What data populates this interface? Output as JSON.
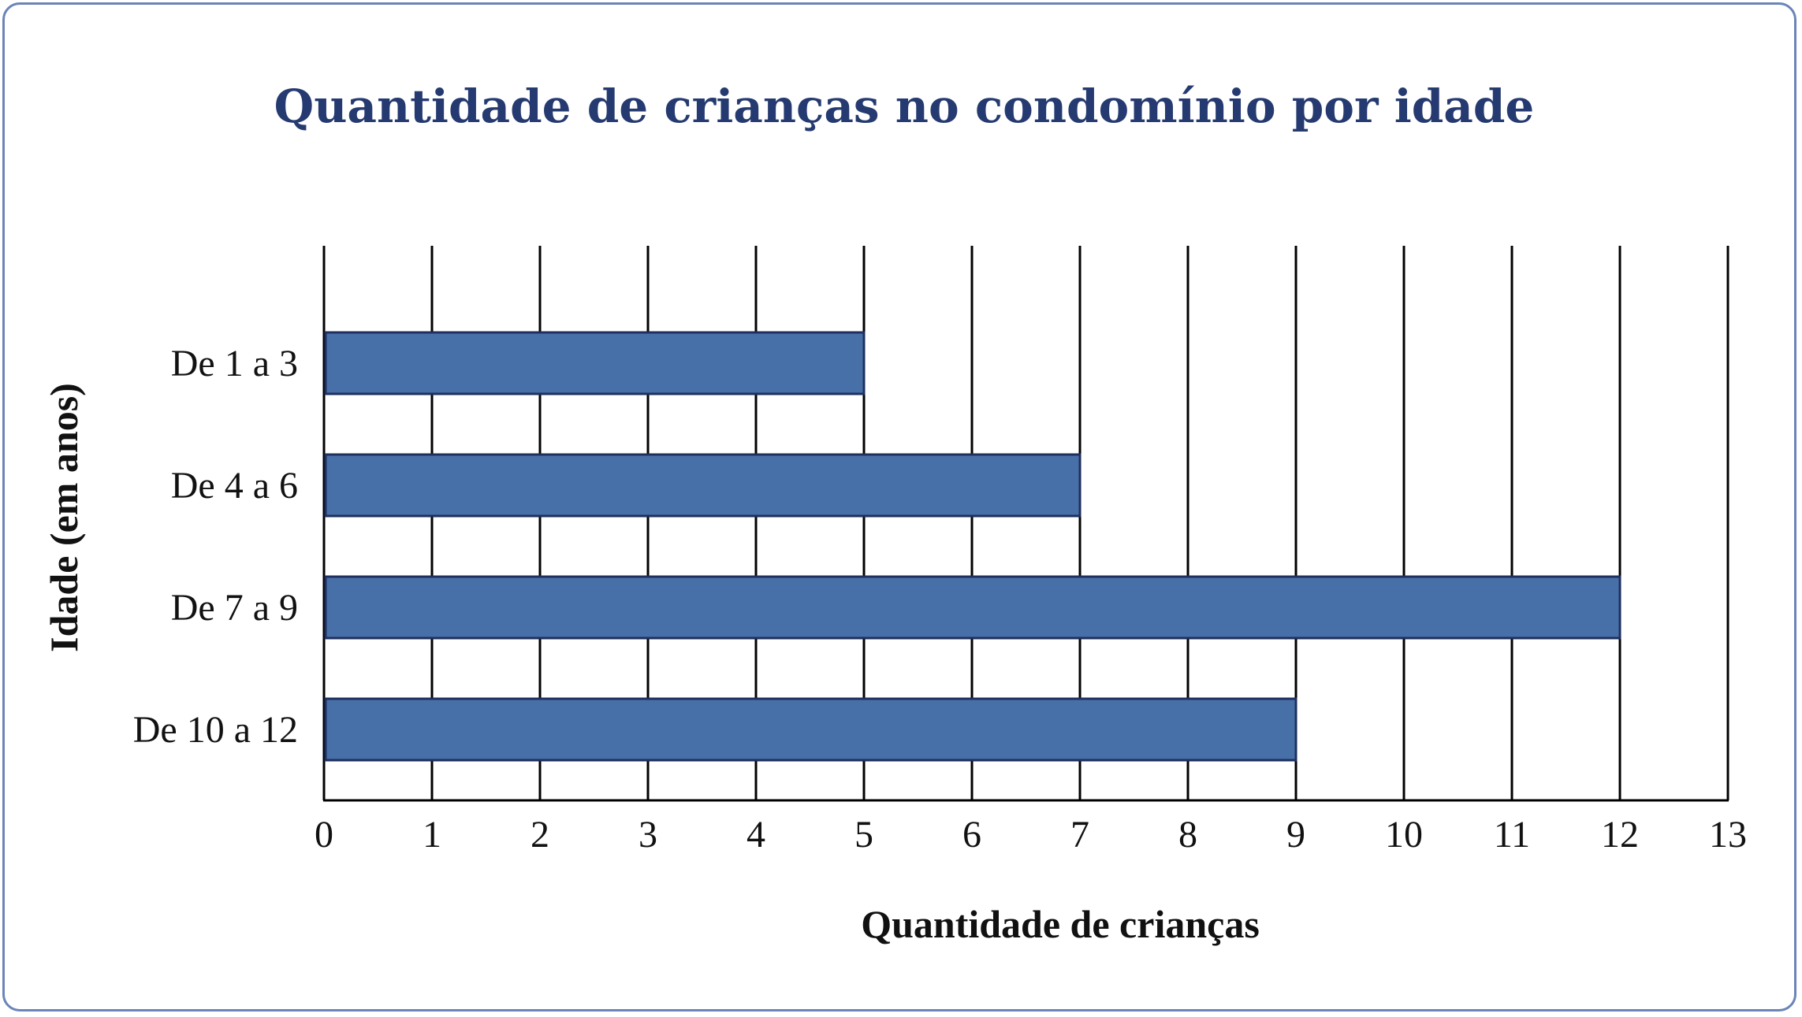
{
  "colors": {
    "bar_fill": "#4870a8",
    "bar_stroke": "#1e2f5e",
    "title": "#253a70",
    "frame": "#6b84b8",
    "grid": "#000000"
  },
  "chart_data": {
    "type": "bar",
    "orientation": "horizontal",
    "title": "Quantidade de crianças no condomínio por idade",
    "xlabel": "Quantidade de crianças",
    "ylabel": "Idade (em anos)",
    "xlim": [
      0,
      13
    ],
    "x_ticks": [
      "0",
      "1",
      "2",
      "3",
      "4",
      "5",
      "6",
      "7",
      "8",
      "9",
      "10",
      "11",
      "12",
      "13"
    ],
    "grid": true,
    "categories": [
      "De 1 a 3",
      "De 4 a 6",
      "De 7 a 9",
      "De 10 a 12"
    ],
    "values": [
      5,
      7,
      12,
      9
    ]
  }
}
